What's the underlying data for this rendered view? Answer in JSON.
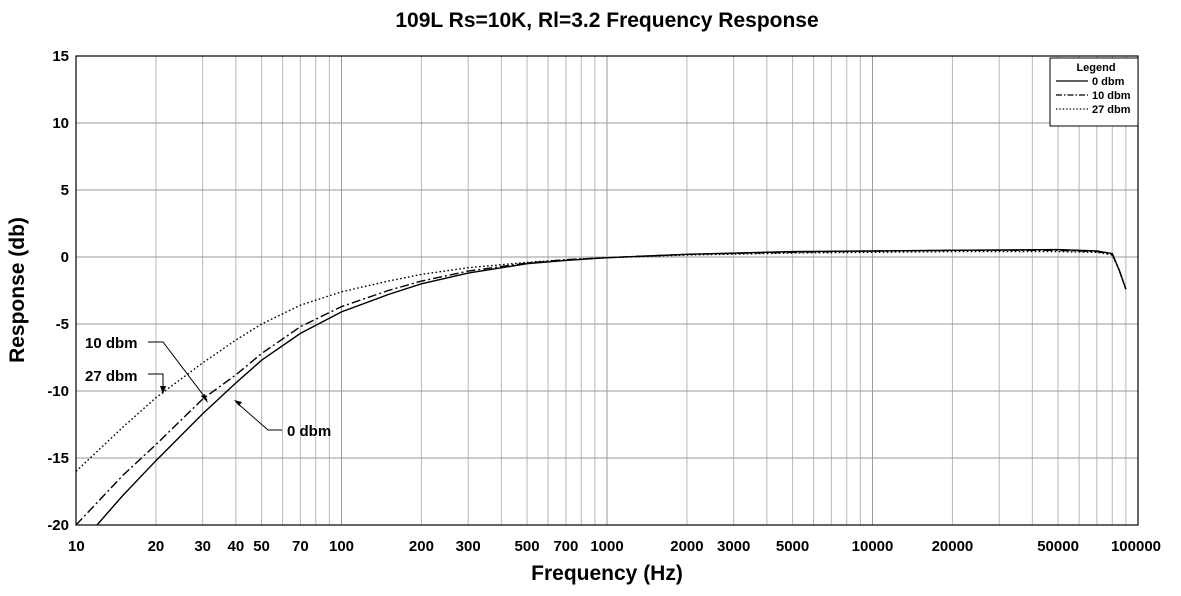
{
  "chart_data": {
    "type": "line",
    "title": "109L Rs=10K, Rl=3.2 Frequency Response",
    "xlabel": "Frequency (Hz)",
    "ylabel": "Response (db)",
    "xscale": "log",
    "xlim": [
      10,
      100000
    ],
    "ylim": [
      -20,
      15
    ],
    "grid": true,
    "xticks": [
      10,
      20,
      30,
      40,
      50,
      70,
      100,
      200,
      300,
      500,
      700,
      1000,
      2000,
      3000,
      5000,
      10000,
      20000,
      50000,
      100000
    ],
    "xtick_labels": [
      "10",
      "20",
      "30",
      "40",
      "50",
      "70",
      "100",
      "200",
      "300",
      "500",
      "700",
      "1000",
      "2000",
      "3000",
      "5000",
      "10000",
      "20000",
      "50000",
      "100000"
    ],
    "yticks": [
      15,
      10,
      5,
      0,
      -5,
      -10,
      -15,
      -20
    ],
    "ytick_labels": [
      "15",
      "10",
      "5",
      "0",
      "-5",
      "-10",
      "-15",
      "-20"
    ],
    "legend": {
      "title": "Legend",
      "position": "top-right",
      "entries": [
        {
          "name": "0 dbm",
          "style": "solid"
        },
        {
          "name": "10 dbm",
          "style": "dashdot"
        },
        {
          "name": "27 dbm",
          "style": "dotted"
        }
      ]
    },
    "series": [
      {
        "name": "0 dbm",
        "style": "solid",
        "x": [
          12,
          15,
          20,
          30,
          40,
          50,
          70,
          100,
          150,
          200,
          300,
          500,
          700,
          1000,
          2000,
          5000,
          10000,
          20000,
          50000,
          70000,
          80000,
          85000,
          90000
        ],
        "y": [
          -20,
          -17.8,
          -15.2,
          -11.7,
          -9.4,
          -7.7,
          -5.7,
          -4.1,
          -2.8,
          -2.0,
          -1.2,
          -0.5,
          -0.25,
          -0.05,
          0.2,
          0.4,
          0.45,
          0.5,
          0.55,
          0.45,
          0.25,
          -1.0,
          -2.4
        ]
      },
      {
        "name": "10 dbm",
        "style": "dashdot",
        "x": [
          10,
          15,
          20,
          30,
          40,
          50,
          70,
          100,
          150,
          200,
          300,
          500,
          700,
          1000,
          2000,
          5000,
          10000,
          20000,
          50000,
          70000,
          80000,
          85000,
          90000
        ],
        "y": [
          -20,
          -16.3,
          -14.0,
          -10.6,
          -8.8,
          -7.2,
          -5.2,
          -3.7,
          -2.5,
          -1.8,
          -1.05,
          -0.45,
          -0.2,
          -0.05,
          0.2,
          0.35,
          0.45,
          0.5,
          0.5,
          0.4,
          0.2,
          -1.0,
          -2.4
        ]
      },
      {
        "name": "27 dbm",
        "style": "dotted",
        "x": [
          10,
          15,
          20,
          30,
          40,
          50,
          70,
          100,
          150,
          200,
          300,
          500,
          700,
          1000,
          2000,
          5000,
          10000,
          20000,
          50000,
          70000,
          80000,
          85000,
          90000
        ],
        "y": [
          -16.0,
          -12.7,
          -10.5,
          -7.9,
          -6.2,
          -5.0,
          -3.6,
          -2.6,
          -1.8,
          -1.3,
          -0.8,
          -0.4,
          -0.2,
          -0.05,
          0.15,
          0.3,
          0.35,
          0.4,
          0.4,
          0.35,
          0.15,
          -1.0,
          -2.4
        ]
      }
    ],
    "annotations": [
      {
        "text": "10 dbm",
        "points_to_series": "10 dbm"
      },
      {
        "text": "27 dbm",
        "points_to_series": "27 dbm"
      },
      {
        "text": "0 dbm",
        "points_to_series": "0 dbm"
      }
    ]
  }
}
